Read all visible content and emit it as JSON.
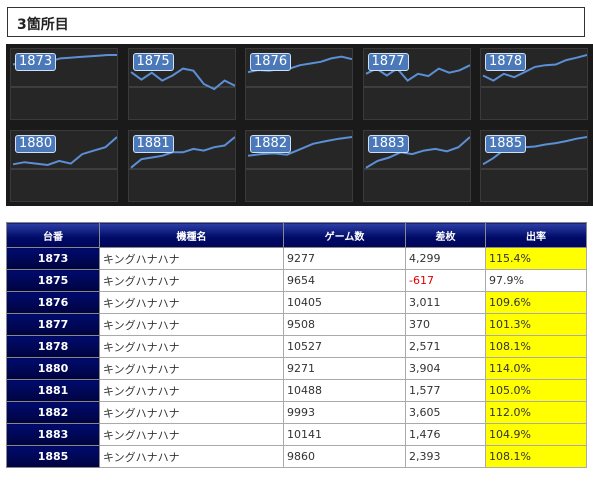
{
  "title": "3箇所目",
  "thumbnails": [
    {
      "label": "1873",
      "points": [
        0.28,
        0.22,
        0.3,
        0.2,
        0.18,
        0.1,
        0.08,
        0.06,
        0.04,
        0.02,
        0.0,
        0.0
      ]
    },
    {
      "label": "1875",
      "points": [
        0.5,
        0.72,
        0.52,
        0.75,
        0.6,
        0.4,
        0.46,
        0.85,
        1.0,
        0.75,
        0.9
      ]
    },
    {
      "label": "1876",
      "points": [
        0.5,
        0.44,
        0.46,
        0.42,
        0.4,
        0.3,
        0.25,
        0.2,
        0.1,
        0.05,
        0.12
      ]
    },
    {
      "label": "1877",
      "points": [
        0.55,
        0.4,
        0.6,
        0.4,
        0.75,
        0.55,
        0.62,
        0.4,
        0.52,
        0.45,
        0.3
      ]
    },
    {
      "label": "1878",
      "points": [
        0.6,
        0.75,
        0.55,
        0.65,
        0.5,
        0.35,
        0.3,
        0.28,
        0.15,
        0.08,
        0.0
      ]
    },
    {
      "label": "1880",
      "points": [
        0.8,
        0.74,
        0.78,
        0.82,
        0.7,
        0.78,
        0.5,
        0.4,
        0.3,
        0.0
      ]
    },
    {
      "label": "1881",
      "points": [
        0.9,
        0.65,
        0.6,
        0.55,
        0.45,
        0.45,
        0.35,
        0.4,
        0.3,
        0.25,
        0.0
      ]
    },
    {
      "label": "1882",
      "points": [
        0.55,
        0.5,
        0.48,
        0.52,
        0.36,
        0.2,
        0.12,
        0.05,
        0.0
      ]
    },
    {
      "label": "1883",
      "points": [
        0.9,
        0.7,
        0.6,
        0.45,
        0.5,
        0.4,
        0.35,
        0.42,
        0.3,
        0.0
      ]
    },
    {
      "label": "1885",
      "points": [
        0.8,
        0.62,
        0.38,
        0.42,
        0.3,
        0.28,
        0.22,
        0.18,
        0.12,
        0.05,
        0.0
      ]
    }
  ],
  "table": {
    "headers": [
      "台番",
      "機種名",
      "ゲーム数",
      "差枚",
      "出率"
    ],
    "rows": [
      {
        "no": "1873",
        "name": "キングハナハナ",
        "games": "9277",
        "diff": "4,299",
        "rate": "115.4%",
        "neg": false,
        "hl": true
      },
      {
        "no": "1875",
        "name": "キングハナハナ",
        "games": "9654",
        "diff": "-617",
        "rate": "97.9%",
        "neg": true,
        "hl": false
      },
      {
        "no": "1876",
        "name": "キングハナハナ",
        "games": "10405",
        "diff": "3,011",
        "rate": "109.6%",
        "neg": false,
        "hl": true
      },
      {
        "no": "1877",
        "name": "キングハナハナ",
        "games": "9508",
        "diff": "370",
        "rate": "101.3%",
        "neg": false,
        "hl": true
      },
      {
        "no": "1878",
        "name": "キングハナハナ",
        "games": "10527",
        "diff": "2,571",
        "rate": "108.1%",
        "neg": false,
        "hl": true
      },
      {
        "no": "1880",
        "name": "キングハナハナ",
        "games": "9271",
        "diff": "3,904",
        "rate": "114.0%",
        "neg": false,
        "hl": true
      },
      {
        "no": "1881",
        "name": "キングハナハナ",
        "games": "10488",
        "diff": "1,577",
        "rate": "105.0%",
        "neg": false,
        "hl": true
      },
      {
        "no": "1882",
        "name": "キングハナハナ",
        "games": "9993",
        "diff": "3,605",
        "rate": "112.0%",
        "neg": false,
        "hl": true
      },
      {
        "no": "1883",
        "name": "キングハナハナ",
        "games": "10141",
        "diff": "1,476",
        "rate": "104.9%",
        "neg": false,
        "hl": true
      },
      {
        "no": "1885",
        "name": "キングハナハナ",
        "games": "9860",
        "diff": "2,393",
        "rate": "108.1%",
        "neg": false,
        "hl": true
      }
    ]
  }
}
